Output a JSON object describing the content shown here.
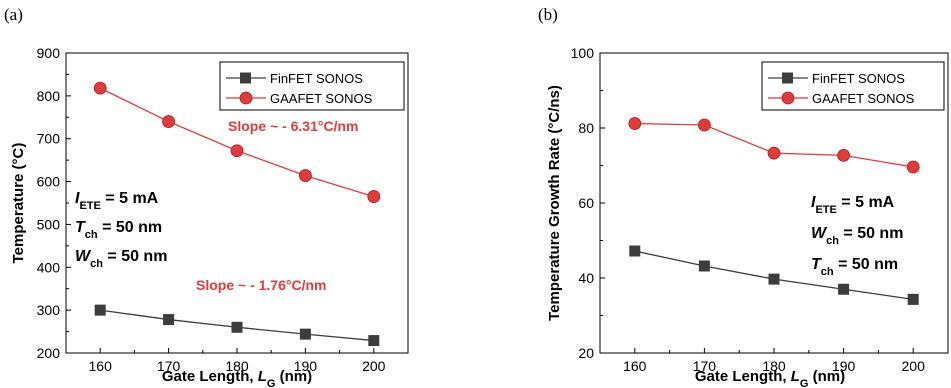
{
  "colors": {
    "finfet": "#3d3d3d",
    "gaafet": "#e23b3b",
    "slope_text": "#e23b3b"
  },
  "chart_data": [
    {
      "type": "line",
      "panel_label": "(a)",
      "xlabel": "Gate Length, L_G (nm)",
      "xlabel_main": "Gate Length, ",
      "xlabel_italic": "L",
      "xlabel_sub": "G",
      "xlabel_tail": " (nm)",
      "ylabel": "Temperature (°C)",
      "x": [
        160,
        170,
        180,
        190,
        200
      ],
      "xlim": [
        155,
        205
      ],
      "ylim": [
        200,
        900
      ],
      "xticks": [
        "160",
        "170",
        "180",
        "190",
        "200"
      ],
      "yticks": [
        "200",
        "300",
        "400",
        "500",
        "600",
        "700",
        "800",
        "900"
      ],
      "legend_position": "top-right",
      "series": [
        {
          "name": "FinFET SONOS",
          "marker": "square",
          "values": [
            300,
            278,
            260,
            244,
            229
          ]
        },
        {
          "name": "GAAFET SONOS",
          "marker": "circle",
          "values": [
            818,
            740,
            672,
            614,
            565
          ]
        }
      ],
      "annotations": {
        "params": [
          {
            "italic": "I",
            "sub": "ETE",
            "rest": " = 5 mA"
          },
          {
            "italic": "T",
            "sub": "ch",
            "rest": " = 50 nm"
          },
          {
            "italic": "W",
            "sub": "ch",
            "rest": " = 50 nm"
          }
        ],
        "slopes": [
          "Slope ~ - 6.31°C/nm",
          "Slope ~ - 1.76°C/nm"
        ]
      }
    },
    {
      "type": "line",
      "panel_label": "(b)",
      "xlabel": "Gate Length, L_G (nm)",
      "xlabel_main": "Gate Length, ",
      "xlabel_italic": "L",
      "xlabel_sub": "G",
      "xlabel_tail": " (nm)",
      "ylabel": "Temperature Growth Rate (°C/ns)",
      "x": [
        160,
        170,
        180,
        190,
        200
      ],
      "xlim": [
        155,
        205
      ],
      "ylim": [
        20,
        100
      ],
      "xticks": [
        "160",
        "170",
        "180",
        "190",
        "200"
      ],
      "yticks": [
        "20",
        "40",
        "60",
        "80",
        "100"
      ],
      "legend_position": "top-right",
      "series": [
        {
          "name": "FinFET SONOS",
          "marker": "square",
          "values": [
            47.2,
            43.2,
            39.7,
            37.0,
            34.3
          ]
        },
        {
          "name": "GAAFET SONOS",
          "marker": "circle",
          "values": [
            81.2,
            80.8,
            73.3,
            72.7,
            69.6
          ]
        }
      ],
      "annotations": {
        "params": [
          {
            "italic": "I",
            "sub": "ETE",
            "rest": " = 5 mA"
          },
          {
            "italic": "W",
            "sub": "ch",
            "rest": " = 50 nm"
          },
          {
            "italic": "T",
            "sub": "ch",
            "rest": " = 50 nm"
          }
        ]
      }
    }
  ]
}
